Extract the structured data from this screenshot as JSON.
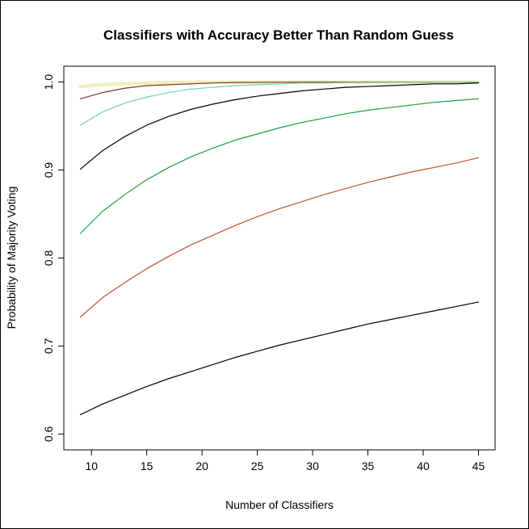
{
  "chart_data": {
    "type": "line",
    "title": "Classifiers with Accuracy Better Than Random Guess",
    "xlabel": "Number of Classifiers",
    "ylabel": "Probability of Majority Voting",
    "xlim": [
      7.5,
      46.5
    ],
    "ylim": [
      0.582,
      1.018
    ],
    "xticks": [
      10,
      15,
      20,
      25,
      30,
      35,
      40,
      45
    ],
    "yticks": [
      0.6,
      0.7,
      0.8,
      0.9,
      1.0
    ],
    "xtick_labels": [
      "10",
      "15",
      "20",
      "25",
      "30",
      "35",
      "40",
      "45"
    ],
    "ytick_labels": [
      "0.6",
      "0.7",
      "0.8",
      "0.9",
      "1.0"
    ],
    "grid": false,
    "x": [
      9,
      11,
      13,
      15,
      17,
      19,
      21,
      23,
      25,
      27,
      29,
      31,
      33,
      35,
      37,
      39,
      41,
      43,
      45
    ],
    "series": [
      {
        "color": "#000000",
        "width": 1.2,
        "values": [
          0.622,
          0.634,
          0.644,
          0.654,
          0.663,
          0.671,
          0.679,
          0.687,
          0.694,
          0.701,
          0.707,
          0.713,
          0.719,
          0.725,
          0.73,
          0.735,
          0.74,
          0.745,
          0.75
        ]
      },
      {
        "color": "#c0522d",
        "width": 1.2,
        "values": [
          0.733,
          0.755,
          0.772,
          0.788,
          0.802,
          0.815,
          0.826,
          0.837,
          0.847,
          0.856,
          0.864,
          0.872,
          0.879,
          0.886,
          0.892,
          0.898,
          0.903,
          0.908,
          0.914
        ]
      },
      {
        "color": "#1f9e3a",
        "width": 1.2,
        "values": [
          0.828,
          0.853,
          0.872,
          0.889,
          0.903,
          0.915,
          0.925,
          0.934,
          0.941,
          0.948,
          0.954,
          0.959,
          0.964,
          0.968,
          0.971,
          0.974,
          0.977,
          0.979,
          0.981
        ]
      },
      {
        "color": "#000000",
        "width": 1.2,
        "values": [
          0.901,
          0.922,
          0.938,
          0.951,
          0.961,
          0.969,
          0.975,
          0.98,
          0.984,
          0.987,
          0.99,
          0.992,
          0.994,
          0.995,
          0.996,
          0.997,
          0.998,
          0.998,
          0.999
        ]
      },
      {
        "color": "#6fd3a8",
        "width": 1.2,
        "values": [
          0.951,
          0.966,
          0.976,
          0.983,
          0.988,
          0.992,
          0.994,
          0.996,
          0.997,
          0.998,
          0.999,
          0.999,
          0.9995,
          0.9997,
          0.9998,
          0.9999,
          0.9999,
          1.0,
          1.0
        ]
      },
      {
        "color": "#7a3b22",
        "width": 1.2,
        "values": [
          0.981,
          0.988,
          0.993,
          0.996,
          0.997,
          0.998,
          0.999,
          0.9995,
          0.9997,
          0.9998,
          0.9999,
          0.9999,
          1.0,
          1.0,
          1.0,
          1.0,
          1.0,
          1.0,
          1.0
        ]
      },
      {
        "color": "#f3ecc2",
        "width": 4.5,
        "values": [
          0.995,
          0.997,
          0.998,
          0.999,
          0.9995,
          0.9997,
          0.9998,
          0.9999,
          0.9999,
          1.0,
          1.0,
          1.0,
          1.0,
          1.0,
          1.0,
          1.0,
          1.0,
          1.0,
          1.0
        ]
      }
    ]
  }
}
